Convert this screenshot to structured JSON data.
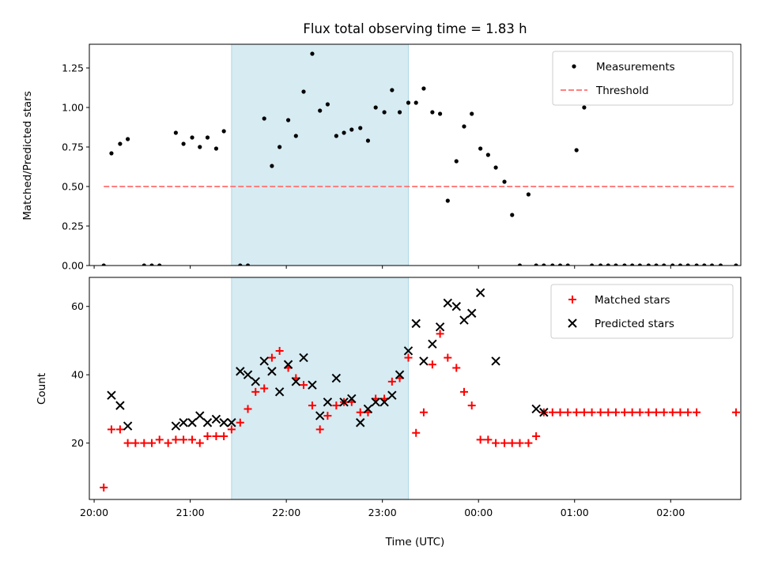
{
  "chart_data": [
    {
      "type": "scatter",
      "title": "Flux total observing time = 1.83 h",
      "xlabel": "",
      "ylabel": "Matched/Predicted stars",
      "ylim": [
        0.0,
        1.4
      ],
      "yticks": [
        "0.00",
        "0.25",
        "0.50",
        "0.75",
        "1.00",
        "1.25"
      ],
      "xlim_hours": [
        19.95,
        26.73
      ],
      "shaded_span_hours": [
        21.43,
        23.27
      ],
      "shade_color": "#add8e6",
      "legend_position": "upper right",
      "series": [
        {
          "name": "Measurements",
          "marker": "dot",
          "color": "#000000",
          "points": [
            [
              20.1,
              0.0
            ],
            [
              20.18,
              0.71
            ],
            [
              20.27,
              0.77
            ],
            [
              20.35,
              0.8
            ],
            [
              20.52,
              0.0
            ],
            [
              20.6,
              0.0
            ],
            [
              20.68,
              0.0
            ],
            [
              20.85,
              0.84
            ],
            [
              20.93,
              0.77
            ],
            [
              21.02,
              0.81
            ],
            [
              21.1,
              0.75
            ],
            [
              21.18,
              0.81
            ],
            [
              21.27,
              0.74
            ],
            [
              21.35,
              0.85
            ],
            [
              21.52,
              0.0
            ],
            [
              21.6,
              0.0
            ],
            [
              21.77,
              0.93
            ],
            [
              21.85,
              0.63
            ],
            [
              21.93,
              0.75
            ],
            [
              22.02,
              0.92
            ],
            [
              22.1,
              0.82
            ],
            [
              22.18,
              1.1
            ],
            [
              22.27,
              1.34
            ],
            [
              22.35,
              0.98
            ],
            [
              22.43,
              1.02
            ],
            [
              22.52,
              0.82
            ],
            [
              22.6,
              0.84
            ],
            [
              22.68,
              0.86
            ],
            [
              22.77,
              0.87
            ],
            [
              22.85,
              0.79
            ],
            [
              22.93,
              1.0
            ],
            [
              23.02,
              0.97
            ],
            [
              23.1,
              1.11
            ],
            [
              23.18,
              0.97
            ],
            [
              23.27,
              1.03
            ],
            [
              23.35,
              1.03
            ],
            [
              23.43,
              1.12
            ],
            [
              23.52,
              0.97
            ],
            [
              23.6,
              0.96
            ],
            [
              23.68,
              0.41
            ],
            [
              23.77,
              0.66
            ],
            [
              23.85,
              0.88
            ],
            [
              23.93,
              0.96
            ],
            [
              24.02,
              0.74
            ],
            [
              24.1,
              0.7
            ],
            [
              24.18,
              0.62
            ],
            [
              24.27,
              0.53
            ],
            [
              24.35,
              0.32
            ],
            [
              24.43,
              0.0
            ],
            [
              24.52,
              0.45
            ],
            [
              24.6,
              0.0
            ],
            [
              24.68,
              0.0
            ],
            [
              24.77,
              0.0
            ],
            [
              24.85,
              0.0
            ],
            [
              24.93,
              0.0
            ],
            [
              25.02,
              0.73
            ],
            [
              25.1,
              1.0
            ],
            [
              25.18,
              0.0
            ],
            [
              25.27,
              0.0
            ],
            [
              25.35,
              0.0
            ],
            [
              25.43,
              0.0
            ],
            [
              25.52,
              0.0
            ],
            [
              25.6,
              0.0
            ],
            [
              25.68,
              0.0
            ],
            [
              25.77,
              0.0
            ],
            [
              25.85,
              0.0
            ],
            [
              25.93,
              0.0
            ],
            [
              26.02,
              0.0
            ],
            [
              26.1,
              0.0
            ],
            [
              26.18,
              0.0
            ],
            [
              26.27,
              0.0
            ],
            [
              26.35,
              0.0
            ],
            [
              26.43,
              0.0
            ],
            [
              26.52,
              0.0
            ],
            [
              26.68,
              0.0
            ]
          ]
        },
        {
          "name": "Threshold",
          "marker": "dashed-line",
          "color": "#ff7f7f",
          "points": [
            [
              20.1,
              0.5
            ],
            [
              26.68,
              0.5
            ]
          ]
        }
      ]
    },
    {
      "type": "scatter",
      "title": "",
      "xlabel": "Time (UTC)",
      "ylabel": "Count",
      "ylim": [
        3.5,
        68.5
      ],
      "yticks": [
        "20",
        "40",
        "60"
      ],
      "xlim_hours": [
        19.95,
        26.73
      ],
      "xticks": [
        {
          "hour": 20,
          "label": "20:00"
        },
        {
          "hour": 21,
          "label": "21:00"
        },
        {
          "hour": 22,
          "label": "22:00"
        },
        {
          "hour": 23,
          "label": "23:00"
        },
        {
          "hour": 24,
          "label": "00:00"
        },
        {
          "hour": 25,
          "label": "01:00"
        },
        {
          "hour": 26,
          "label": "02:00"
        }
      ],
      "shaded_span_hours": [
        21.43,
        23.27
      ],
      "shade_color": "#add8e6",
      "legend_position": "upper right",
      "series": [
        {
          "name": "Matched stars",
          "marker": "plus",
          "color": "#ff0000",
          "points": [
            [
              20.1,
              7
            ],
            [
              20.18,
              24
            ],
            [
              20.27,
              24
            ],
            [
              20.35,
              20
            ],
            [
              20.43,
              20
            ],
            [
              20.52,
              20
            ],
            [
              20.6,
              20
            ],
            [
              20.68,
              21
            ],
            [
              20.77,
              20
            ],
            [
              20.85,
              21
            ],
            [
              20.93,
              21
            ],
            [
              21.02,
              21
            ],
            [
              21.1,
              20
            ],
            [
              21.18,
              22
            ],
            [
              21.27,
              22
            ],
            [
              21.35,
              22
            ],
            [
              21.43,
              24
            ],
            [
              21.52,
              26
            ],
            [
              21.6,
              30
            ],
            [
              21.68,
              35
            ],
            [
              21.77,
              36
            ],
            [
              21.85,
              45
            ],
            [
              21.93,
              47
            ],
            [
              22.02,
              42
            ],
            [
              22.1,
              39
            ],
            [
              22.18,
              37
            ],
            [
              22.27,
              31
            ],
            [
              22.35,
              24
            ],
            [
              22.43,
              28
            ],
            [
              22.52,
              31
            ],
            [
              22.6,
              32
            ],
            [
              22.68,
              32
            ],
            [
              22.77,
              29
            ],
            [
              22.85,
              29
            ],
            [
              22.93,
              33
            ],
            [
              23.02,
              33
            ],
            [
              23.1,
              38
            ],
            [
              23.18,
              39
            ],
            [
              23.27,
              45
            ],
            [
              23.35,
              23
            ],
            [
              23.43,
              29
            ],
            [
              23.52,
              43
            ],
            [
              23.6,
              52
            ],
            [
              23.68,
              45
            ],
            [
              23.77,
              42
            ],
            [
              23.85,
              35
            ],
            [
              23.93,
              31
            ],
            [
              24.02,
              21
            ],
            [
              24.1,
              21
            ],
            [
              24.18,
              20
            ],
            [
              24.27,
              20
            ],
            [
              24.35,
              20
            ],
            [
              24.43,
              20
            ],
            [
              24.52,
              20
            ],
            [
              24.6,
              22
            ],
            [
              24.68,
              29
            ],
            [
              24.77,
              29
            ],
            [
              24.85,
              29
            ],
            [
              24.93,
              29
            ],
            [
              25.02,
              29
            ],
            [
              25.1,
              29
            ],
            [
              25.18,
              29
            ],
            [
              25.27,
              29
            ],
            [
              25.35,
              29
            ],
            [
              25.43,
              29
            ],
            [
              25.52,
              29
            ],
            [
              25.6,
              29
            ],
            [
              25.68,
              29
            ],
            [
              25.77,
              29
            ],
            [
              25.85,
              29
            ],
            [
              25.93,
              29
            ],
            [
              26.02,
              29
            ],
            [
              26.1,
              29
            ],
            [
              26.18,
              29
            ],
            [
              26.27,
              29
            ],
            [
              26.68,
              29
            ]
          ]
        },
        {
          "name": "Predicted stars",
          "marker": "x",
          "color": "#000000",
          "points": [
            [
              20.18,
              34
            ],
            [
              20.27,
              31
            ],
            [
              20.35,
              25
            ],
            [
              20.85,
              25
            ],
            [
              20.93,
              26
            ],
            [
              21.02,
              26
            ],
            [
              21.1,
              28
            ],
            [
              21.18,
              26
            ],
            [
              21.27,
              27
            ],
            [
              21.35,
              26
            ],
            [
              21.43,
              26
            ],
            [
              21.52,
              41
            ],
            [
              21.6,
              40
            ],
            [
              21.68,
              38
            ],
            [
              21.77,
              44
            ],
            [
              21.85,
              41
            ],
            [
              21.93,
              35
            ],
            [
              22.02,
              43
            ],
            [
              22.1,
              38
            ],
            [
              22.18,
              45
            ],
            [
              22.27,
              37
            ],
            [
              22.35,
              28
            ],
            [
              22.43,
              32
            ],
            [
              22.52,
              39
            ],
            [
              22.6,
              32
            ],
            [
              22.68,
              33
            ],
            [
              22.77,
              26
            ],
            [
              22.85,
              30
            ],
            [
              22.93,
              32
            ],
            [
              23.02,
              32
            ],
            [
              23.1,
              34
            ],
            [
              23.18,
              40
            ],
            [
              23.27,
              47
            ],
            [
              23.35,
              55
            ],
            [
              23.43,
              44
            ],
            [
              23.52,
              49
            ],
            [
              23.6,
              54
            ],
            [
              23.68,
              61
            ],
            [
              23.77,
              60
            ],
            [
              23.85,
              56
            ],
            [
              23.93,
              58
            ],
            [
              24.02,
              64
            ],
            [
              24.18,
              44
            ],
            [
              24.6,
              30
            ],
            [
              24.68,
              29
            ]
          ]
        }
      ]
    }
  ]
}
